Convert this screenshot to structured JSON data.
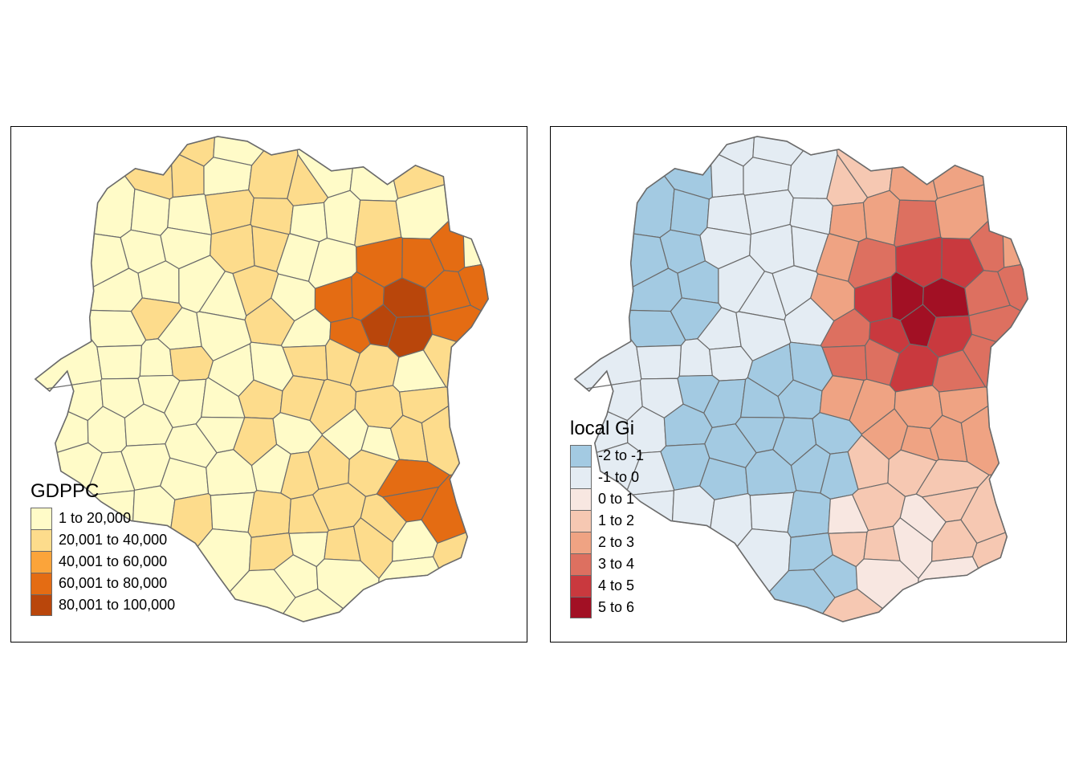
{
  "maps": [
    {
      "legend_title": "GDPPC",
      "classes": [
        {
          "label": "1 to 20,000",
          "color": "#FFFBC8"
        },
        {
          "label": "20,001 to 40,000",
          "color": "#FDDC8C"
        },
        {
          "label": "40,001 to 60,000",
          "color": "#FBA43A"
        },
        {
          "label": "60,001 to 80,000",
          "color": "#E46C13"
        },
        {
          "label": "80,001 to 100,000",
          "color": "#B9460B"
        }
      ]
    },
    {
      "legend_title": "local Gi",
      "classes": [
        {
          "label": "-2 to -1",
          "color": "#A3CAE2"
        },
        {
          "label": "-1 to 0",
          "color": "#E4ECF3"
        },
        {
          "label": "0 to 1",
          "color": "#F8E7E1"
        },
        {
          "label": "1 to 2",
          "color": "#F6C8B2"
        },
        {
          "label": "2 to 3",
          "color": "#EFA383"
        },
        {
          "label": "3 to 4",
          "color": "#DD7060"
        },
        {
          "label": "4 to 5",
          "color": "#C9393E"
        },
        {
          "label": "5 to 6",
          "color": "#A21024"
        }
      ]
    }
  ],
  "border_color": "#6b6b6b"
}
